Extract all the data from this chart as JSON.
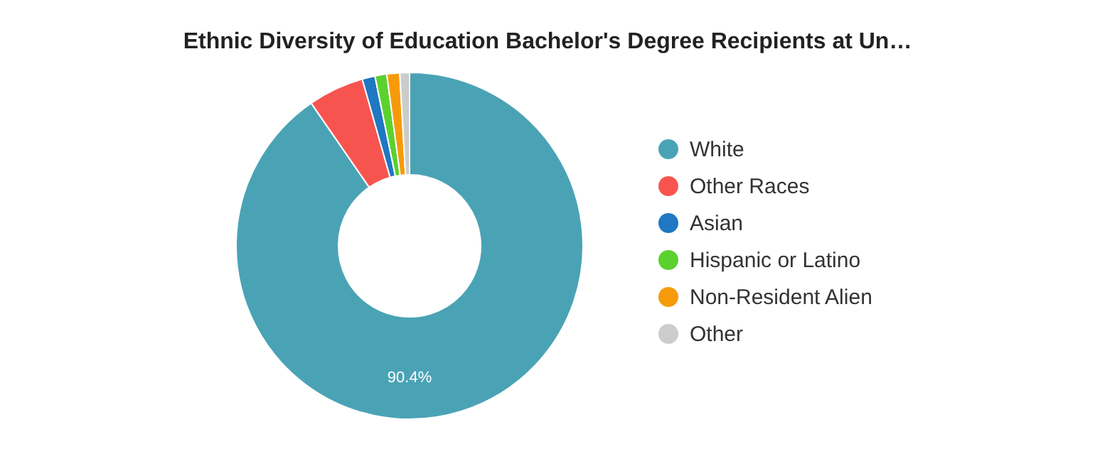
{
  "chart_data": {
    "type": "donut",
    "title": "Ethnic Diversity of Education Bachelor's Degree Recipients at Un…",
    "categories": [
      "White",
      "Other Races",
      "Asian",
      "Hispanic or Latino",
      "Non-Resident Alien",
      "Other"
    ],
    "values": [
      90.4,
      5.2,
      1.2,
      1.1,
      1.2,
      0.9
    ],
    "colors": [
      "#4aa3b5",
      "#f8544f",
      "#1f78c1",
      "#5bd12e",
      "#f79a0a",
      "#cccccc"
    ],
    "value_labels": [
      "90.4%",
      null,
      null,
      null,
      null,
      null
    ],
    "legend": "right"
  }
}
